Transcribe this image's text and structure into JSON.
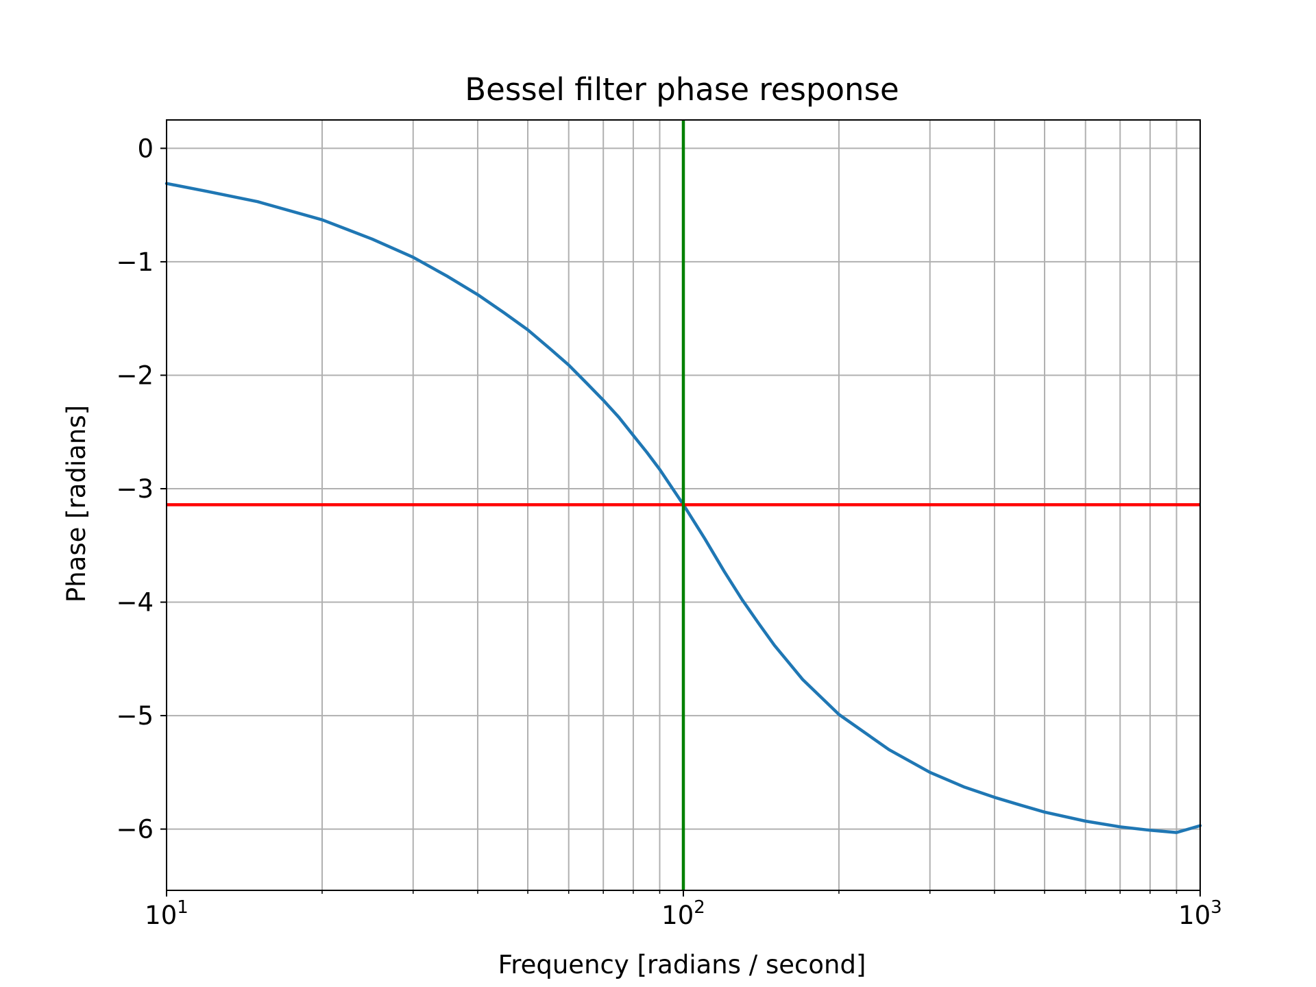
{
  "chart_data": {
    "type": "line",
    "title": "Bessel filter phase response",
    "xlabel": "Frequency [radians / second]",
    "ylabel": "Phase [radians]",
    "xscale": "log",
    "xlim": [
      10,
      1000
    ],
    "ylim": [
      -6.54,
      0.25
    ],
    "grid": true,
    "grid_which": "both",
    "x_ticks": [
      {
        "value": 10,
        "base": "10",
        "exp": "1"
      },
      {
        "value": 100,
        "base": "10",
        "exp": "2"
      },
      {
        "value": 1000,
        "base": "10",
        "exp": "3"
      }
    ],
    "y_ticks": [
      {
        "value": 0,
        "label": "0"
      },
      {
        "value": -1,
        "label": "−1"
      },
      {
        "value": -2,
        "label": "−2"
      },
      {
        "value": -3,
        "label": "−3"
      },
      {
        "value": -4,
        "label": "−4"
      },
      {
        "value": -5,
        "label": "−5"
      },
      {
        "value": -6,
        "label": "−6"
      }
    ],
    "series": [
      {
        "color": "#1f77b4",
        "x": [
          10,
          12,
          15,
          20,
          25,
          30,
          35,
          40,
          45,
          50,
          55,
          60,
          65,
          70,
          75,
          80,
          85,
          90,
          95,
          100,
          110,
          120,
          130,
          140,
          150,
          170,
          200,
          250,
          300,
          350,
          400,
          450,
          500,
          600,
          700,
          800,
          900,
          1000
        ],
        "y": [
          -0.31,
          -0.38,
          -0.47,
          -0.63,
          -0.8,
          -0.96,
          -1.13,
          -1.29,
          -1.45,
          -1.6,
          -1.76,
          -1.91,
          -2.07,
          -2.22,
          -2.37,
          -2.53,
          -2.68,
          -2.83,
          -2.99,
          -3.14,
          -3.44,
          -3.73,
          -3.98,
          -4.19,
          -4.38,
          -4.68,
          -4.99,
          -5.3,
          -5.5,
          -5.63,
          -5.72,
          -5.79,
          -5.85,
          -5.93,
          -5.98,
          -6.01,
          -6.03,
          -5.97
        ]
      }
    ],
    "hlines": [
      {
        "y": -3.14159,
        "color": "#ff0000"
      }
    ],
    "vlines": [
      {
        "x": 100,
        "color": "#008000"
      }
    ]
  }
}
